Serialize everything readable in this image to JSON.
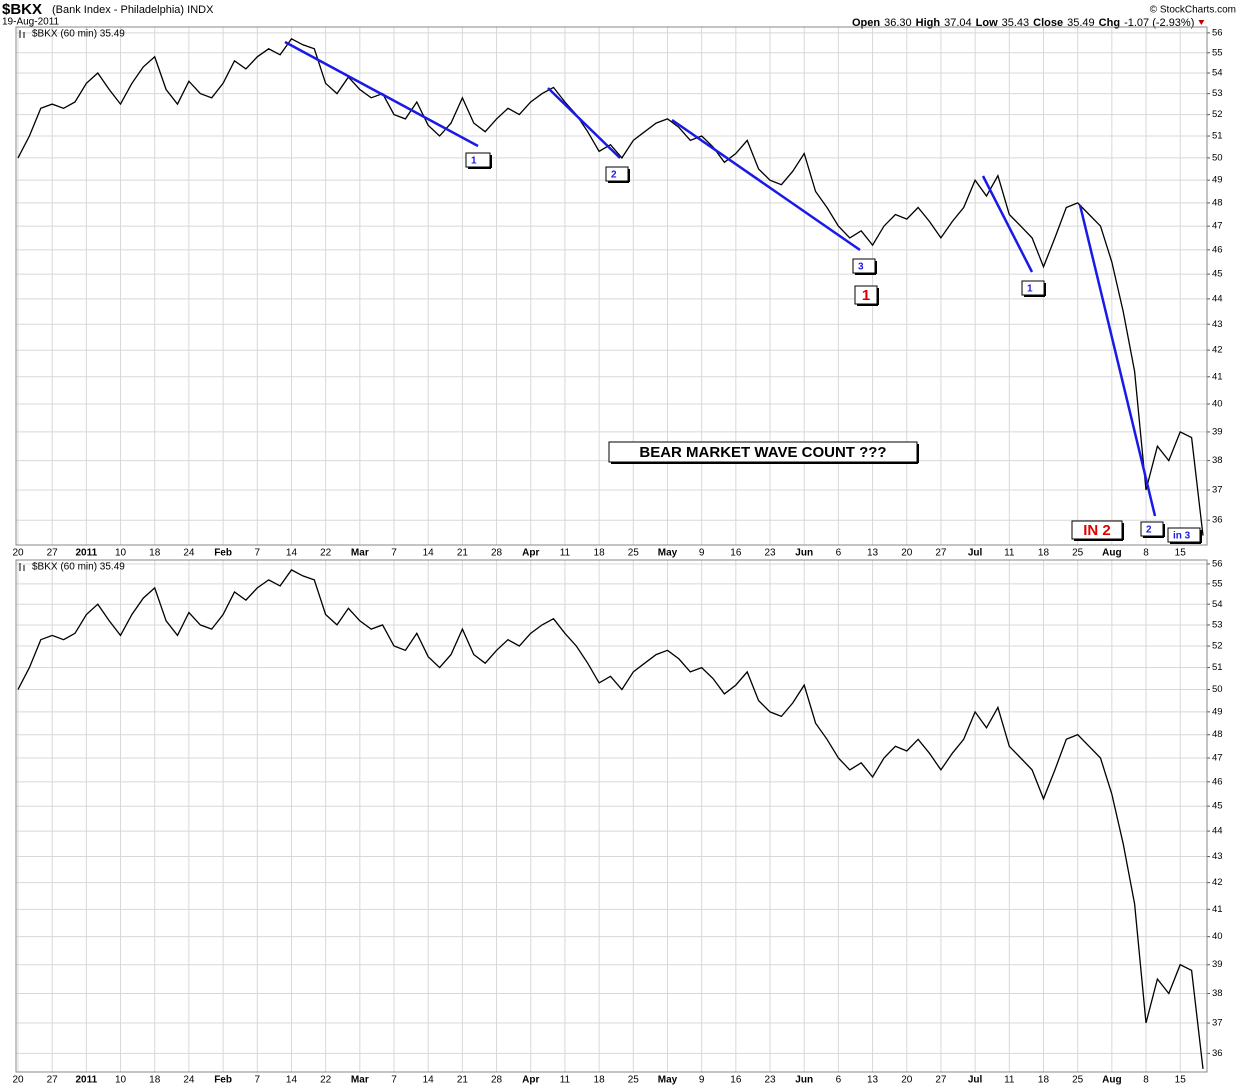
{
  "header": {
    "title": "$BKX",
    "subtitle": "(Bank Index - Philadelphia) INDX",
    "date": "19-Aug-2011",
    "source": "© StockCharts.com",
    "quote": [
      {
        "label": "Open",
        "value": "36.30"
      },
      {
        "label": "High",
        "value": "37.04"
      },
      {
        "label": "Low",
        "value": "35.43"
      },
      {
        "label": "Close",
        "value": "35.49"
      },
      {
        "label": "Chg",
        "value": "-1.07 (-2.93%)"
      }
    ]
  },
  "chart_data": [
    {
      "type": "line",
      "log_scale": true,
      "grid": true,
      "annotations": [
        "1",
        "2",
        "3",
        "1",
        "1",
        "IN 2",
        "2",
        "in 3",
        "BEAR MARKET WAVE COUNT ???"
      ],
      "categories": [
        "20",
        null,
        null,
        "27",
        null,
        null,
        "2011",
        null,
        null,
        "10",
        null,
        null,
        "18",
        null,
        null,
        "24",
        null,
        null,
        "Feb",
        null,
        null,
        "7",
        null,
        null,
        "14",
        null,
        null,
        "22",
        null,
        null,
        "Mar",
        null,
        null,
        "7",
        null,
        null,
        "14",
        null,
        null,
        "21",
        null,
        null,
        "28",
        null,
        null,
        "Apr",
        null,
        null,
        "11",
        null,
        null,
        "18",
        null,
        null,
        "25",
        null,
        null,
        "May",
        null,
        null,
        "9",
        null,
        null,
        "16",
        null,
        null,
        "23",
        null,
        null,
        "Jun",
        null,
        null,
        "6",
        null,
        null,
        "13",
        null,
        null,
        "20",
        null,
        null,
        "27",
        null,
        null,
        "Jul",
        null,
        null,
        "11",
        null,
        null,
        "18",
        null,
        null,
        "25",
        null,
        null,
        "Aug",
        null,
        null,
        "8",
        null,
        null,
        "15",
        null,
        null
      ],
      "series": [
        {
          "name": "$BKX (60 min) 35.49",
          "color": "#000000",
          "values": [
            50.0,
            51.0,
            52.3,
            52.5,
            52.3,
            52.6,
            53.5,
            54.0,
            53.2,
            52.5,
            53.5,
            54.3,
            54.8,
            53.2,
            52.5,
            53.6,
            53.0,
            52.8,
            53.5,
            54.6,
            54.2,
            54.8,
            55.2,
            54.9,
            55.7,
            55.4,
            55.2,
            53.5,
            53.0,
            53.8,
            53.2,
            52.8,
            53.0,
            52.0,
            51.8,
            52.6,
            51.5,
            51.0,
            51.6,
            52.8,
            51.6,
            51.2,
            51.8,
            52.3,
            52.0,
            52.6,
            53.0,
            53.3,
            52.6,
            52.0,
            51.2,
            50.3,
            50.6,
            50.0,
            50.8,
            51.2,
            51.6,
            51.8,
            51.4,
            50.8,
            51.0,
            50.5,
            49.8,
            50.2,
            50.8,
            49.5,
            49.0,
            48.8,
            49.4,
            50.2,
            48.5,
            47.8,
            47.0,
            46.5,
            46.8,
            46.2,
            47.0,
            47.5,
            47.3,
            47.8,
            47.2,
            46.5,
            47.2,
            47.8,
            49.0,
            48.3,
            49.2,
            47.5,
            47.0,
            46.5,
            45.3,
            46.5,
            47.8,
            48.0,
            47.5,
            47.0,
            45.5,
            43.5,
            41.2,
            37.0,
            38.5,
            38.0,
            39.0,
            38.8,
            35.5
          ]
        }
      ],
      "ylim": [
        35.2,
        56.3
      ],
      "yticks": [
        36,
        37,
        38,
        39,
        40,
        41,
        42,
        43,
        44,
        45,
        46,
        47,
        48,
        49,
        50,
        51,
        52,
        53,
        54,
        55,
        56
      ]
    },
    {
      "type": "line",
      "log_scale": true,
      "grid": true,
      "categories": [
        "20",
        null,
        null,
        "27",
        null,
        null,
        "2011",
        null,
        null,
        "10",
        null,
        null,
        "18",
        null,
        null,
        "24",
        null,
        null,
        "Feb",
        null,
        null,
        "7",
        null,
        null,
        "14",
        null,
        null,
        "22",
        null,
        null,
        "Mar",
        null,
        null,
        "7",
        null,
        null,
        "14",
        null,
        null,
        "21",
        null,
        null,
        "28",
        null,
        null,
        "Apr",
        null,
        null,
        "11",
        null,
        null,
        "18",
        null,
        null,
        "25",
        null,
        null,
        "May",
        null,
        null,
        "9",
        null,
        null,
        "16",
        null,
        null,
        "23",
        null,
        null,
        "Jun",
        null,
        null,
        "6",
        null,
        null,
        "13",
        null,
        null,
        "20",
        null,
        null,
        "27",
        null,
        null,
        "Jul",
        null,
        null,
        "11",
        null,
        null,
        "18",
        null,
        null,
        "25",
        null,
        null,
        "Aug",
        null,
        null,
        "8",
        null,
        null,
        "15",
        null,
        null
      ],
      "series": [
        {
          "name": "$BKX (60 min) 35.49",
          "color": "#000000",
          "values": [
            50.0,
            51.0,
            52.3,
            52.5,
            52.3,
            52.6,
            53.5,
            54.0,
            53.2,
            52.5,
            53.5,
            54.3,
            54.8,
            53.2,
            52.5,
            53.6,
            53.0,
            52.8,
            53.5,
            54.6,
            54.2,
            54.8,
            55.2,
            54.9,
            55.7,
            55.4,
            55.2,
            53.5,
            53.0,
            53.8,
            53.2,
            52.8,
            53.0,
            52.0,
            51.8,
            52.6,
            51.5,
            51.0,
            51.6,
            52.8,
            51.6,
            51.2,
            51.8,
            52.3,
            52.0,
            52.6,
            53.0,
            53.3,
            52.6,
            52.0,
            51.2,
            50.3,
            50.6,
            50.0,
            50.8,
            51.2,
            51.6,
            51.8,
            51.4,
            50.8,
            51.0,
            50.5,
            49.8,
            50.2,
            50.8,
            49.5,
            49.0,
            48.8,
            49.4,
            50.2,
            48.5,
            47.8,
            47.0,
            46.5,
            46.8,
            46.2,
            47.0,
            47.5,
            47.3,
            47.8,
            47.2,
            46.5,
            47.2,
            47.8,
            49.0,
            48.3,
            49.2,
            47.5,
            47.0,
            46.5,
            45.3,
            46.5,
            47.8,
            48.0,
            47.5,
            47.0,
            45.5,
            43.5,
            41.2,
            37.0,
            38.5,
            38.0,
            39.0,
            38.8,
            35.5
          ]
        }
      ],
      "ylim": [
        35.4,
        56.2
      ],
      "yticks": [
        36,
        37,
        38,
        39,
        40,
        41,
        42,
        43,
        44,
        45,
        46,
        47,
        48,
        49,
        50,
        51,
        52,
        53,
        54,
        55,
        56
      ]
    }
  ]
}
